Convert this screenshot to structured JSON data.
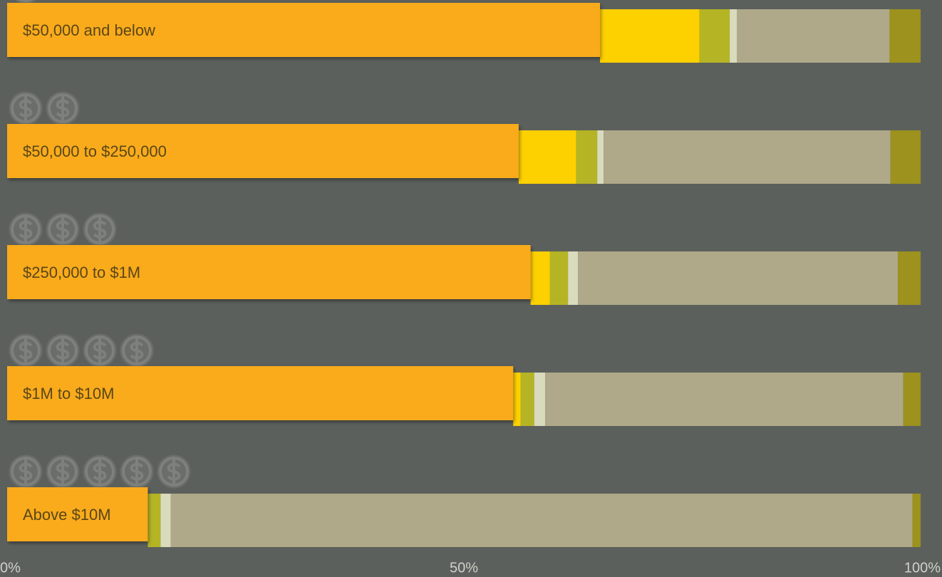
{
  "chart_data": {
    "type": "bar",
    "orientation": "horizontal",
    "stacked": true,
    "categories": [
      "$50,000 and below",
      "$50,000 to $250,000",
      "$250,000 to $1M",
      "$1M to $10M",
      "Above $10M"
    ],
    "series": [
      {
        "color": "#f9ab1b",
        "values": [
          64.9,
          56.0,
          57.3,
          55.4,
          15.4
        ]
      },
      {
        "color": "#fdd000",
        "values": [
          10.9,
          6.3,
          2.1,
          0.8,
          0
        ]
      },
      {
        "color": "#b5b425",
        "values": [
          3.3,
          2.3,
          2.0,
          1.5,
          1.4
        ]
      },
      {
        "color": "#d9dbbd",
        "values": [
          0.8,
          0.7,
          1.1,
          1.2,
          1.1
        ]
      },
      {
        "color": "#afa98a",
        "values": [
          16.7,
          31.4,
          35.0,
          39.2,
          81.2
        ]
      },
      {
        "color": "#9c921d",
        "values": [
          3.4,
          3.3,
          2.5,
          1.9,
          0.9
        ]
      }
    ],
    "xlim": [
      0,
      100
    ],
    "xticks": [
      {
        "value": 0,
        "label": "0%"
      },
      {
        "value": 50,
        "label": "50%"
      },
      {
        "value": 100,
        "label": "100%"
      }
    ]
  }
}
